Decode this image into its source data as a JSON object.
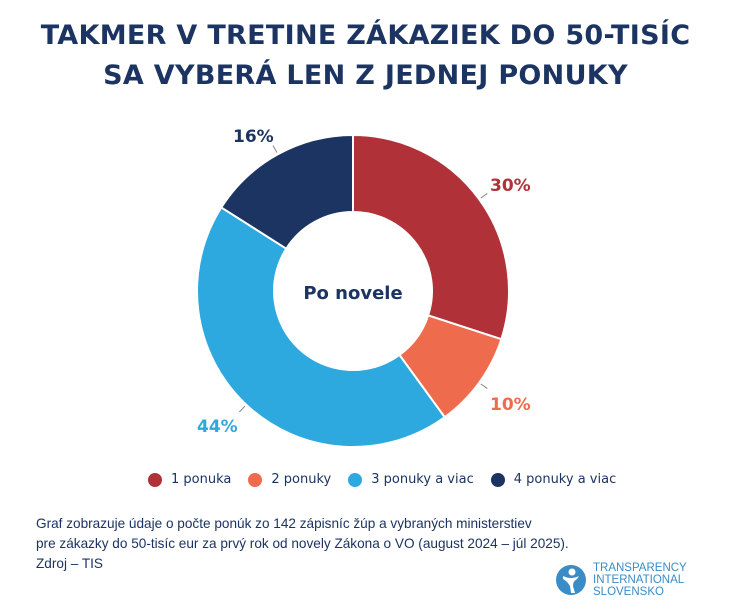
{
  "chart_data": {
    "type": "pie",
    "variant": "donut",
    "title": [
      "TAKMER V TRETINE ZÁKAZIEK DO 50-TISÍC",
      "SA VYBERÁ LEN Z JEDNEJ PONUKY"
    ],
    "center_label": "Po novele",
    "categories": [
      "1 ponuka",
      "2 ponuky",
      "3 ponuky a viac",
      "4 ponuky a viac"
    ],
    "values": [
      30,
      10,
      44,
      16
    ],
    "value_labels": [
      "30%",
      "10%",
      "44%",
      "16%"
    ],
    "colors": [
      "#b03238",
      "#ee6c4d",
      "#2ea9e0",
      "#1c3461"
    ],
    "legend_position": "bottom"
  },
  "note": {
    "lines": [
      "Graf zobrazuje údaje o počte ponúk zo 142 zápisníc žúp a vybraných ministerstiev",
      "pre zákazky do 50-tisíc eur za prvý rok od novely Zákona o VO (august 2024 – júl 2025).",
      "Zdroj – TIS"
    ]
  },
  "logo": {
    "lines": [
      "TRANSPARENCY",
      "INTERNATIONAL",
      "SLOVENSKO"
    ]
  }
}
